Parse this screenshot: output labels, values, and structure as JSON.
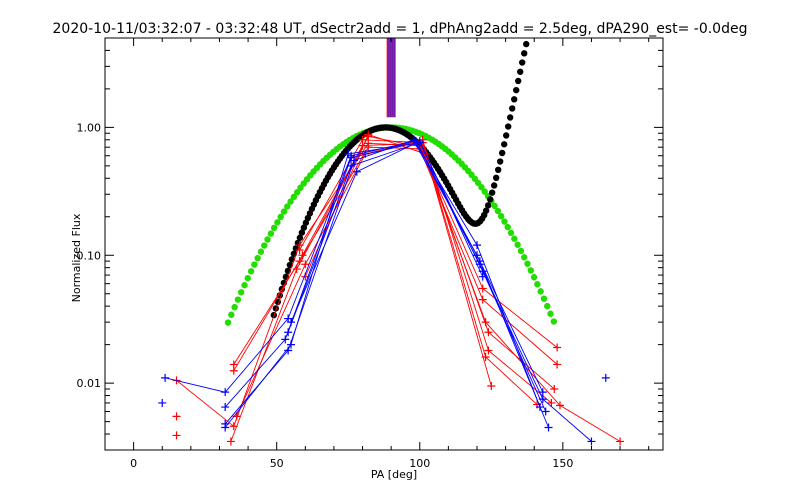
{
  "chart_data": {
    "type": "scatter",
    "title": "2020-10-11/03:32:07 - 03:32:48 UT, dSectr2add = 1, dPhAng2add = 2.5deg, dPA290_est= -0.0deg",
    "xlabel": "PA [deg]",
    "ylabel": "Normalized Flux",
    "xlim": [
      -10,
      185
    ],
    "ylim": [
      0.003,
      5.0
    ],
    "yscale": "log",
    "x_ticks": [
      0,
      50,
      100,
      150
    ],
    "x_tick_labels": [
      "0",
      "50",
      "100",
      "150"
    ],
    "y_ticks": [
      0.01,
      0.1,
      1.0
    ],
    "y_tick_labels": [
      "0.01",
      "0.10",
      "1.00"
    ],
    "colors": {
      "red": "#ff0000",
      "blue": "#0000ff",
      "green": "#22dd00",
      "black": "#000000"
    },
    "vertical_lines": {
      "x_center": 90,
      "y_from": 1.2,
      "y_to": 5.0,
      "colors": [
        "#ff0000",
        "#0000ff"
      ]
    },
    "fit_curves": {
      "green_gaussian": {
        "x_range": [
          33,
          147
        ],
        "peak_x": 90,
        "peak_y": 1.0,
        "sigma_deg": 21.5,
        "color": "#22dd00"
      },
      "black_curve": {
        "x_range": [
          49,
          148
        ],
        "peak_x": 88,
        "peak_y": 1.0,
        "color": "#000000"
      }
    },
    "series": [
      {
        "name": "red-1",
        "color": "#ff0000",
        "x": [
          15,
          35,
          58,
          82,
          100,
          122,
          148
        ],
        "y": [
          0.0105,
          0.0046,
          0.12,
          0.75,
          0.72,
          0.055,
          0.019
        ]
      },
      {
        "name": "red-2",
        "color": "#ff0000",
        "x": [
          35,
          58,
          82,
          100,
          122,
          148
        ],
        "y": [
          0.014,
          0.09,
          0.7,
          0.68,
          0.045,
          0.014
        ]
      },
      {
        "name": "red-3",
        "color": "#ff0000",
        "x": [
          35,
          59,
          80,
          100,
          123,
          149,
          170
        ],
        "y": [
          0.0125,
          0.1,
          0.72,
          0.75,
          0.03,
          0.0067,
          0.0035
        ]
      },
      {
        "name": "red-4",
        "color": "#ff0000",
        "x": [
          34,
          57,
          82,
          101,
          124,
          147
        ],
        "y": [
          0.0035,
          0.078,
          0.85,
          0.7,
          0.025,
          0.009
        ]
      },
      {
        "name": "red-5",
        "color": "#ff0000",
        "x": [
          36,
          60,
          81,
          101,
          124,
          146
        ],
        "y": [
          0.0055,
          0.085,
          0.62,
          0.8,
          0.018,
          0.007
        ]
      },
      {
        "name": "red-6",
        "color": "#ff0000",
        "x": [
          58,
          80,
          101,
          123,
          141
        ],
        "y": [
          0.11,
          0.8,
          0.76,
          0.016,
          0.0068
        ]
      },
      {
        "name": "red-7",
        "color": "#ff0000",
        "x": [
          60,
          82,
          102,
          125
        ],
        "y": [
          0.068,
          0.88,
          0.62,
          0.0095
        ]
      },
      {
        "name": "blue-1",
        "color": "#0000ff",
        "x": [
          11,
          32,
          54,
          76,
          98,
          120,
          143
        ],
        "y": [
          0.011,
          0.0085,
          0.032,
          0.6,
          0.78,
          0.1,
          0.0085
        ]
      },
      {
        "name": "blue-2",
        "color": "#0000ff",
        "x": [
          32,
          53,
          76,
          99,
          121,
          143,
          160
        ],
        "y": [
          0.0065,
          0.022,
          0.58,
          0.76,
          0.085,
          0.0075,
          0.0035
        ]
      },
      {
        "name": "blue-3",
        "color": "#0000ff",
        "x": [
          32,
          54,
          77,
          98,
          120,
          142
        ],
        "y": [
          0.0048,
          0.018,
          0.55,
          0.8,
          0.12,
          0.0065
        ]
      },
      {
        "name": "blue-4",
        "color": "#0000ff",
        "x": [
          32,
          55,
          75,
          100,
          122,
          144
        ],
        "y": [
          0.0045,
          0.02,
          0.62,
          0.76,
          0.075,
          0.006
        ]
      },
      {
        "name": "blue-5",
        "color": "#0000ff",
        "x": [
          54,
          76,
          99,
          121,
          145
        ],
        "y": [
          0.025,
          0.5,
          0.75,
          0.09,
          0.0045
        ]
      },
      {
        "name": "blue-6",
        "color": "#0000ff",
        "x": [
          55,
          78,
          100,
          122
        ],
        "y": [
          0.03,
          0.45,
          0.78,
          0.068
        ]
      }
    ],
    "outlier_points": [
      {
        "color": "#0000ff",
        "x": 10,
        "y": 0.007
      },
      {
        "color": "#0000ff",
        "x": 165,
        "y": 0.011
      },
      {
        "color": "#ff0000",
        "x": 15,
        "y": 0.0055
      },
      {
        "color": "#ff0000",
        "x": 15,
        "y": 0.0039
      }
    ]
  }
}
